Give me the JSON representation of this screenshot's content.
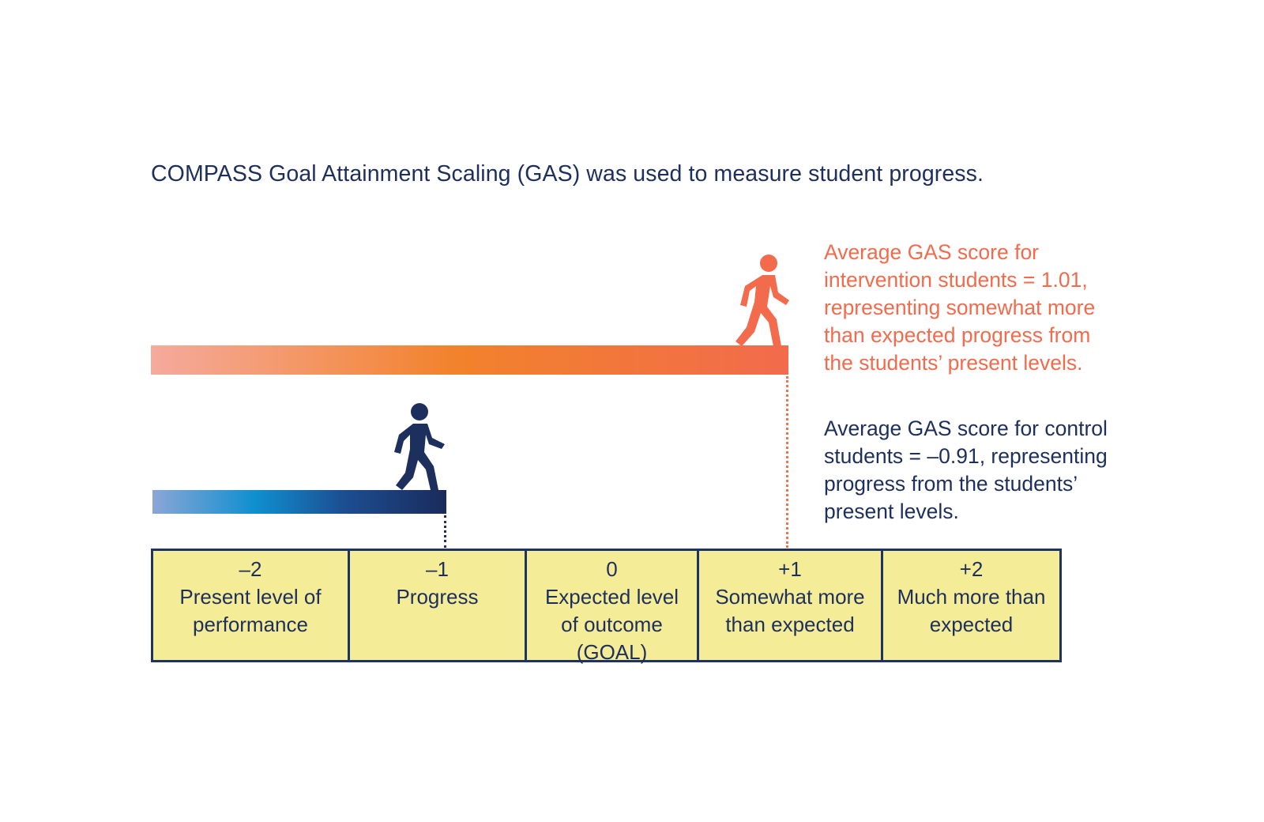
{
  "title": "COMPASS Goal Attainment Scaling (GAS) was used to measure student progress.",
  "intervention": {
    "note_lines": [
      "Average GAS score for",
      "intervention students = 1.01,",
      "representing somewhat more",
      "than expected progress from",
      "the students’ present levels."
    ],
    "score": 1.01,
    "color": "#f26b4c",
    "icon": "walking-person-icon"
  },
  "control": {
    "note_lines": [
      "Average GAS score for control",
      "students = –0.91, representing",
      "progress from the students’",
      "present levels."
    ],
    "score": -0.91,
    "color": "#1d2f5c",
    "icon": "walking-person-icon"
  },
  "scale": [
    {
      "score": "–2",
      "label": "Present level of\nperformance"
    },
    {
      "score": "–1",
      "label": "Progress"
    },
    {
      "score": "0",
      "label": "Expected level\nof outcome\n(GOAL)"
    },
    {
      "score": "+1",
      "label": "Somewhat more\nthan expected"
    },
    {
      "score": "+2",
      "label": "Much more than\nexpected"
    }
  ],
  "colors": {
    "scale_fill": "#f5ec97",
    "scale_border": "#1d3461",
    "navy": "#1d2f5c",
    "orange": "#f26b4c"
  }
}
